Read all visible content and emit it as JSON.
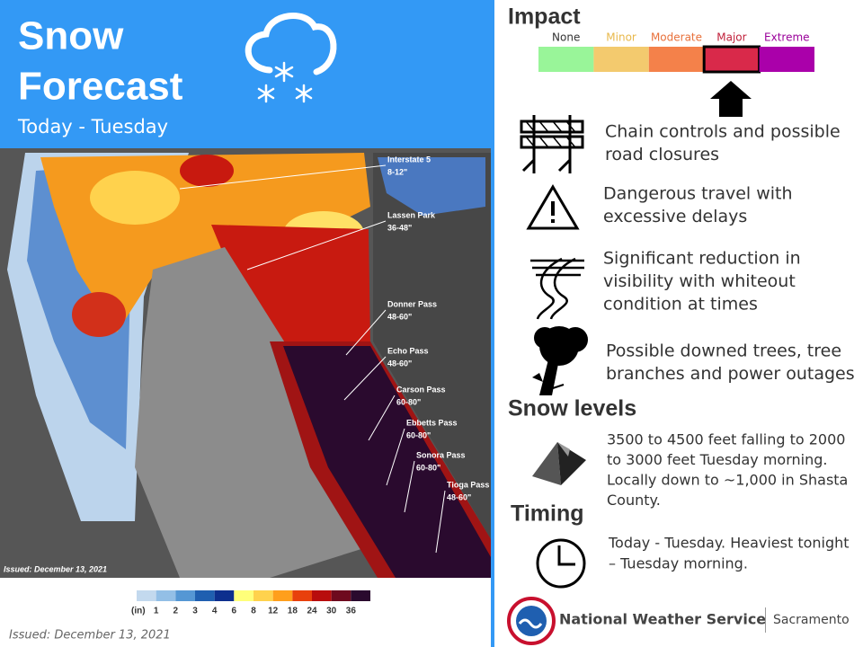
{
  "header": {
    "title_lines": [
      "Snow",
      "Forecast"
    ],
    "subtitle": "Today - Tuesday"
  },
  "map": {
    "labels": [
      {
        "name": "Interstate 5",
        "amount": "8-12\""
      },
      {
        "name": "Lassen Park",
        "amount": "36-48\""
      },
      {
        "name": "Donner Pass",
        "amount": "48-60\""
      },
      {
        "name": "Echo Pass",
        "amount": "48-60\""
      },
      {
        "name": "Carson Pass",
        "amount": "60-80\""
      },
      {
        "name": "Ebbetts Pass",
        "amount": "60-80\""
      },
      {
        "name": "Sonora Pass",
        "amount": "60-80\""
      },
      {
        "name": "Tioga Pass",
        "amount": "48-60\""
      }
    ],
    "issued": "Issued: December 13, 2021"
  },
  "legend": {
    "unit": "(in)",
    "ticks": [
      "1",
      "2",
      "3",
      "4",
      "6",
      "8",
      "12",
      "18",
      "24",
      "30",
      "36"
    ]
  },
  "issued": "Issued: December 13, 2021",
  "impact": {
    "title": "Impact",
    "levels": [
      "None",
      "Minor",
      "Moderate",
      "Major",
      "Extreme"
    ]
  },
  "hazards": [
    {
      "lines": [
        "Chain controls and possible",
        "road closures"
      ]
    },
    {
      "lines": [
        "Dangerous travel with",
        "excessive delays"
      ]
    },
    {
      "lines": [
        "Significant reduction in",
        "visibility with whiteout",
        "condition at times"
      ]
    },
    {
      "lines": [
        "Possible downed trees, tree",
        "branches and power outages"
      ]
    }
  ],
  "snow_levels": {
    "title": "Snow levels",
    "lines": [
      "3500 to 4500 feet falling to 2000",
      "to 3000 feet Tuesday morning.",
      "Locally down to ~1,000 in Shasta",
      "County."
    ]
  },
  "timing": {
    "title": "Timing",
    "lines": [
      "Today - Tuesday. Heaviest tonight",
      "– Tuesday morning."
    ]
  },
  "footer": {
    "agency": "National Weather Service",
    "office": "Sacramento"
  }
}
